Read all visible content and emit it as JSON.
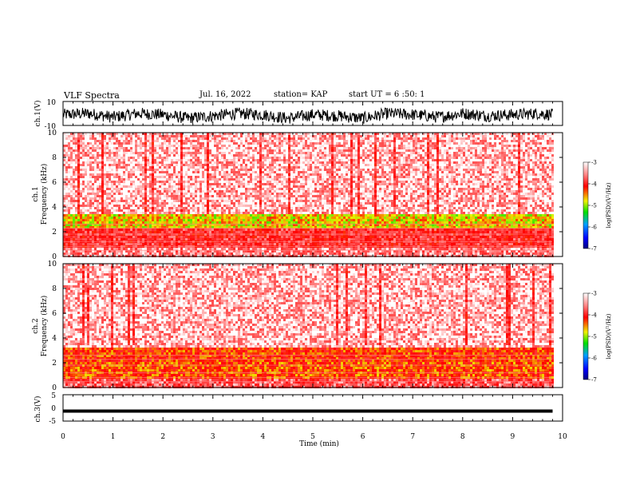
{
  "header": {
    "title": "VLF Spectra",
    "date": "Jul. 16, 2022",
    "station": "station= KAP",
    "start": "start UT = 6 :50: 1"
  },
  "colors": {
    "spec_low": "#0000a0",
    "spec_mid": "#00e000",
    "spec_yellow": "#f0f000",
    "spec_high": "#ff0000",
    "spec_white": "#ffffff"
  },
  "chart_data": [
    {
      "type": "line",
      "id": "ch1-waveform",
      "ylabel": "ch.1(V)",
      "ylim": [
        -10,
        10
      ],
      "yticks": [
        "10",
        "-10"
      ],
      "xlim": [
        0,
        10
      ],
      "x": [
        0,
        0.5,
        1,
        1.5,
        2,
        2.5,
        3,
        3.5,
        4,
        4.5,
        5,
        5.5,
        6,
        6.5,
        7,
        7.5,
        8,
        8.5,
        9,
        9.5,
        9.8
      ],
      "values": [
        -1,
        0,
        -3,
        0,
        -1,
        -4,
        -2,
        0,
        -1,
        -4,
        -1,
        -2,
        -4,
        0,
        -1,
        -3,
        0,
        -2,
        -1,
        0,
        -1
      ]
    },
    {
      "type": "heatmap",
      "id": "ch1-spectrogram",
      "ylabel": "ch.1 Frequency (kHz)",
      "ylim": [
        0,
        10
      ],
      "yticks": [
        "0",
        "2",
        "4",
        "6",
        "8",
        "10"
      ],
      "xlim": [
        0,
        10
      ],
      "colorbar": {
        "label": "log(PSD)(V²/Hz)",
        "range": [
          -7,
          -3
        ],
        "ticks": [
          "-3",
          "-4",
          "-5",
          "-6",
          "-7"
        ]
      },
      "bands": [
        {
          "from_khz": 0,
          "to_khz": 0.8,
          "level": -3.4
        },
        {
          "from_khz": 0.8,
          "to_khz": 2.2,
          "level": -3.8
        },
        {
          "from_khz": 2.2,
          "to_khz": 3.4,
          "level": -4.7
        },
        {
          "from_khz": 3.4,
          "to_khz": 10,
          "level": -3.2
        }
      ]
    },
    {
      "type": "heatmap",
      "id": "ch2-spectrogram",
      "ylabel": "ch.2 Frequency (kHz)",
      "ylim": [
        0,
        10
      ],
      "yticks": [
        "0",
        "2",
        "4",
        "6",
        "8",
        "10"
      ],
      "xlim": [
        0,
        10
      ],
      "colorbar": {
        "label": "log(PSD)(V²/Hz)",
        "range": [
          -7,
          -3
        ],
        "ticks": [
          "-3",
          "-4",
          "-5",
          "-6",
          "-7"
        ]
      },
      "bands": [
        {
          "from_khz": 0,
          "to_khz": 0.8,
          "level": -3.6
        },
        {
          "from_khz": 0.8,
          "to_khz": 2.0,
          "level": -4.3
        },
        {
          "from_khz": 2.0,
          "to_khz": 3.3,
          "level": -4.2
        },
        {
          "from_khz": 3.3,
          "to_khz": 10,
          "level": -3.2
        }
      ]
    },
    {
      "type": "line",
      "id": "ch3-waveform",
      "ylabel": "ch.3(V)",
      "ylim": [
        -5,
        5
      ],
      "yticks": [
        "5",
        "0",
        "-5"
      ],
      "xlim": [
        0,
        10
      ],
      "x": [
        0,
        9.8
      ],
      "values": [
        -1.2,
        -1.2
      ]
    }
  ],
  "xaxis": {
    "label": "Time (min)",
    "ticks": [
      "0",
      "1",
      "2",
      "3",
      "4",
      "5",
      "6",
      "7",
      "8",
      "9",
      "10"
    ]
  }
}
